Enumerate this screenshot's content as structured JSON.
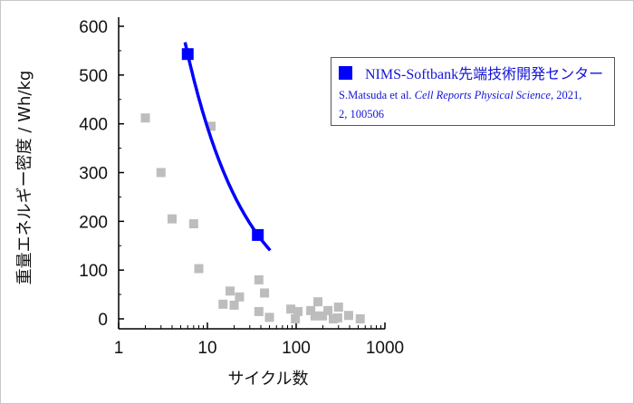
{
  "chart_data": {
    "type": "scatter",
    "xlabel": "サイクル数",
    "ylabel": "重量エネルギー密度 / Wh/kg",
    "xscale": "log",
    "xlim": [
      1,
      1000
    ],
    "ylim": [
      0,
      600
    ],
    "xticks": [
      "1",
      "10",
      "100",
      "1000"
    ],
    "xtick_values": [
      1,
      10,
      100,
      1000
    ],
    "yticks": [
      "0",
      "100",
      "200",
      "300",
      "400",
      "500",
      "600"
    ],
    "ytick_values": [
      0,
      100,
      200,
      300,
      400,
      500,
      600
    ],
    "grid": false,
    "legend_placement": "top-right",
    "series": [
      {
        "name": "NIMS-Softbank先端技術開発センター",
        "color": "#0000ff",
        "marker": "square",
        "points": [
          [
            6,
            543
          ],
          [
            37,
            172
          ]
        ],
        "trend_curve": [
          [
            5.6,
            585
          ],
          [
            8,
            475
          ],
          [
            12,
            370
          ],
          [
            18,
            290
          ],
          [
            25,
            230
          ],
          [
            37,
            172
          ],
          [
            51,
            139
          ]
        ]
      },
      {
        "color": "#bdbdbd",
        "marker": "square",
        "points": [
          [
            2,
            412
          ],
          [
            3,
            300
          ],
          [
            4,
            205
          ],
          [
            7,
            195
          ],
          [
            8,
            103
          ],
          [
            11,
            395
          ],
          [
            15,
            30
          ],
          [
            18,
            57
          ],
          [
            20,
            28
          ],
          [
            23,
            45
          ],
          [
            38,
            80
          ],
          [
            44,
            53
          ],
          [
            38,
            15
          ],
          [
            50,
            3
          ],
          [
            87,
            20
          ],
          [
            105,
            15
          ],
          [
            98,
            0
          ],
          [
            146,
            17
          ],
          [
            176,
            35
          ],
          [
            163,
            6
          ],
          [
            198,
            6
          ],
          [
            228,
            17
          ],
          [
            262,
            0
          ],
          [
            294,
            2
          ],
          [
            300,
            24
          ],
          [
            390,
            7
          ],
          [
            527,
            0
          ]
        ]
      }
    ],
    "legend": {
      "label": "NIMS-Softbank先端技術開発センター",
      "citation_authors": "S.Matsuda et al.",
      "citation_journal": "Cell Reports Physical Science,",
      "citation_year": "2021,",
      "citation_volume": "2, 100506"
    }
  }
}
